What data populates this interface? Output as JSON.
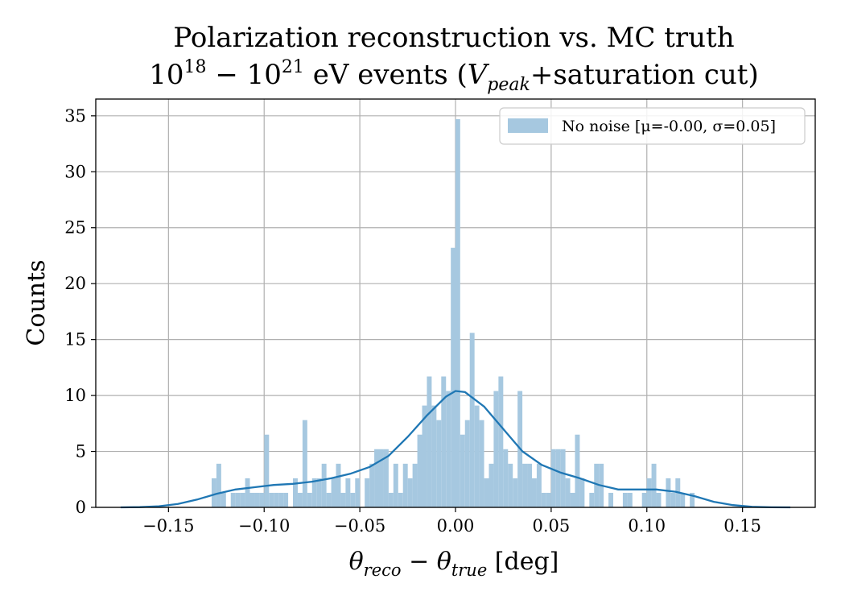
{
  "chart_data": {
    "type": "bar",
    "title": "Polarization reconstruction vs. MC truth",
    "subtitle": "10^18 – 10^21 eV events (V_peak+saturation cut)",
    "subtitle_parts": {
      "b1": "10",
      "e1": "18",
      "dash": " − ",
      "b2": "10",
      "e2": "21",
      "mid": " eV events (",
      "v": "V",
      "vsub": "peak",
      "tail": "+saturation cut)"
    },
    "xlabel": "θ_reco − θ_true [deg]",
    "xlabel_parts": {
      "t1": "θ",
      "s1": "reco",
      "minus": " − ",
      "t2": "θ",
      "s2": "true",
      "unit": " [deg]"
    },
    "ylabel": "Counts",
    "xlim": [
      -0.188,
      0.188
    ],
    "ylim": [
      0,
      36.5
    ],
    "xticks": [
      -0.15,
      -0.1,
      -0.05,
      0.0,
      0.05,
      0.1,
      0.15
    ],
    "xtick_labels": [
      "−0.15",
      "−0.10",
      "−0.05",
      "0.00",
      "0.05",
      "0.10",
      "0.15"
    ],
    "yticks": [
      0,
      5,
      10,
      15,
      20,
      25,
      30,
      35
    ],
    "ytick_labels": [
      "0",
      "5",
      "10",
      "15",
      "20",
      "25",
      "30",
      "35"
    ],
    "grid": true,
    "legend_position": "top-right",
    "bar_color": "#a6c8e0",
    "kde_color": "#1f77b4",
    "series": [
      {
        "name": "No noise [μ=-0.00, σ=0.05]",
        "type": "histogram",
        "bins": [
          {
            "x": -0.1262,
            "y": 2.6
          },
          {
            "x": -0.1237,
            "y": 3.9
          },
          {
            "x": -0.1212,
            "y": 1.3
          },
          {
            "x": -0.1162,
            "y": 1.3
          },
          {
            "x": -0.1137,
            "y": 1.3
          },
          {
            "x": -0.1112,
            "y": 1.3
          },
          {
            "x": -0.1087,
            "y": 2.6
          },
          {
            "x": -0.1062,
            "y": 1.3
          },
          {
            "x": -0.1037,
            "y": 1.3
          },
          {
            "x": -0.1012,
            "y": 1.3
          },
          {
            "x": -0.0987,
            "y": 6.5
          },
          {
            "x": -0.0962,
            "y": 1.3
          },
          {
            "x": -0.0937,
            "y": 1.3
          },
          {
            "x": -0.0912,
            "y": 1.3
          },
          {
            "x": -0.0887,
            "y": 1.3
          },
          {
            "x": -0.0862,
            "y": 0.0
          },
          {
            "x": -0.0837,
            "y": 2.6
          },
          {
            "x": -0.0812,
            "y": 1.3
          },
          {
            "x": -0.0787,
            "y": 7.8
          },
          {
            "x": -0.0762,
            "y": 1.3
          },
          {
            "x": -0.0737,
            "y": 2.6
          },
          {
            "x": -0.0712,
            "y": 2.6
          },
          {
            "x": -0.0687,
            "y": 3.9
          },
          {
            "x": -0.0662,
            "y": 1.3
          },
          {
            "x": -0.0637,
            "y": 2.6
          },
          {
            "x": -0.0612,
            "y": 3.9
          },
          {
            "x": -0.0587,
            "y": 1.3
          },
          {
            "x": -0.0562,
            "y": 2.6
          },
          {
            "x": -0.0537,
            "y": 1.3
          },
          {
            "x": -0.0512,
            "y": 2.6
          },
          {
            "x": -0.0487,
            "y": 0.0
          },
          {
            "x": -0.0462,
            "y": 2.6
          },
          {
            "x": -0.0437,
            "y": 3.9
          },
          {
            "x": -0.0412,
            "y": 5.2
          },
          {
            "x": -0.0387,
            "y": 5.2
          },
          {
            "x": -0.0362,
            "y": 5.2
          },
          {
            "x": -0.0337,
            "y": 1.3
          },
          {
            "x": -0.0312,
            "y": 3.9
          },
          {
            "x": -0.0287,
            "y": 1.3
          },
          {
            "x": -0.0262,
            "y": 3.9
          },
          {
            "x": -0.0237,
            "y": 2.6
          },
          {
            "x": -0.0212,
            "y": 3.9
          },
          {
            "x": -0.0187,
            "y": 6.5
          },
          {
            "x": -0.0162,
            "y": 9.1
          },
          {
            "x": -0.0137,
            "y": 11.7
          },
          {
            "x": -0.0112,
            "y": 9.1
          },
          {
            "x": -0.0087,
            "y": 7.8
          },
          {
            "x": -0.0062,
            "y": 11.7
          },
          {
            "x": -0.0037,
            "y": 10.4
          },
          {
            "x": -0.0012,
            "y": 23.2
          },
          {
            "x": 0.0012,
            "y": 34.7
          },
          {
            "x": 0.0037,
            "y": 6.5
          },
          {
            "x": 0.0062,
            "y": 7.8
          },
          {
            "x": 0.0087,
            "y": 15.6
          },
          {
            "x": 0.0112,
            "y": 9.1
          },
          {
            "x": 0.0137,
            "y": 7.8
          },
          {
            "x": 0.0162,
            "y": 2.6
          },
          {
            "x": 0.0187,
            "y": 3.9
          },
          {
            "x": 0.0212,
            "y": 10.4
          },
          {
            "x": 0.0237,
            "y": 11.7
          },
          {
            "x": 0.0262,
            "y": 5.2
          },
          {
            "x": 0.0287,
            "y": 3.9
          },
          {
            "x": 0.0312,
            "y": 2.6
          },
          {
            "x": 0.0337,
            "y": 10.4
          },
          {
            "x": 0.0362,
            "y": 3.9
          },
          {
            "x": 0.0387,
            "y": 3.9
          },
          {
            "x": 0.0412,
            "y": 2.6
          },
          {
            "x": 0.0437,
            "y": 3.9
          },
          {
            "x": 0.0462,
            "y": 1.3
          },
          {
            "x": 0.0487,
            "y": 1.3
          },
          {
            "x": 0.0512,
            "y": 5.2
          },
          {
            "x": 0.0537,
            "y": 5.2
          },
          {
            "x": 0.0562,
            "y": 5.2
          },
          {
            "x": 0.0587,
            "y": 2.6
          },
          {
            "x": 0.0612,
            "y": 1.3
          },
          {
            "x": 0.0637,
            "y": 6.5
          },
          {
            "x": 0.0662,
            "y": 2.6
          },
          {
            "x": 0.0712,
            "y": 1.3
          },
          {
            "x": 0.0737,
            "y": 3.9
          },
          {
            "x": 0.0762,
            "y": 3.9
          },
          {
            "x": 0.0812,
            "y": 1.3
          },
          {
            "x": 0.0887,
            "y": 1.3
          },
          {
            "x": 0.0912,
            "y": 1.3
          },
          {
            "x": 0.0987,
            "y": 1.3
          },
          {
            "x": 0.1012,
            "y": 2.6
          },
          {
            "x": 0.1037,
            "y": 3.9
          },
          {
            "x": 0.1062,
            "y": 1.3
          },
          {
            "x": 0.1112,
            "y": 2.6
          },
          {
            "x": 0.1137,
            "y": 1.3
          },
          {
            "x": 0.1162,
            "y": 2.6
          },
          {
            "x": 0.1187,
            "y": 1.3
          },
          {
            "x": 0.1237,
            "y": 1.3
          }
        ]
      },
      {
        "type": "kde",
        "points": [
          {
            "x": -0.175,
            "y": 0.0
          },
          {
            "x": -0.165,
            "y": 0.02
          },
          {
            "x": -0.155,
            "y": 0.1
          },
          {
            "x": -0.145,
            "y": 0.3
          },
          {
            "x": -0.135,
            "y": 0.7
          },
          {
            "x": -0.125,
            "y": 1.2
          },
          {
            "x": -0.115,
            "y": 1.6
          },
          {
            "x": -0.105,
            "y": 1.8
          },
          {
            "x": -0.095,
            "y": 2.0
          },
          {
            "x": -0.085,
            "y": 2.1
          },
          {
            "x": -0.075,
            "y": 2.3
          },
          {
            "x": -0.065,
            "y": 2.6
          },
          {
            "x": -0.055,
            "y": 3.0
          },
          {
            "x": -0.045,
            "y": 3.6
          },
          {
            "x": -0.035,
            "y": 4.6
          },
          {
            "x": -0.025,
            "y": 6.3
          },
          {
            "x": -0.015,
            "y": 8.2
          },
          {
            "x": -0.005,
            "y": 9.9
          },
          {
            "x": 0.0,
            "y": 10.4
          },
          {
            "x": 0.005,
            "y": 10.3
          },
          {
            "x": 0.015,
            "y": 9.0
          },
          {
            "x": 0.025,
            "y": 7.0
          },
          {
            "x": 0.035,
            "y": 5.0
          },
          {
            "x": 0.045,
            "y": 3.8
          },
          {
            "x": 0.055,
            "y": 3.1
          },
          {
            "x": 0.065,
            "y": 2.6
          },
          {
            "x": 0.075,
            "y": 2.0
          },
          {
            "x": 0.085,
            "y": 1.6
          },
          {
            "x": 0.095,
            "y": 1.6
          },
          {
            "x": 0.105,
            "y": 1.6
          },
          {
            "x": 0.115,
            "y": 1.4
          },
          {
            "x": 0.125,
            "y": 1.0
          },
          {
            "x": 0.135,
            "y": 0.5
          },
          {
            "x": 0.145,
            "y": 0.2
          },
          {
            "x": 0.155,
            "y": 0.05
          },
          {
            "x": 0.165,
            "y": 0.01
          },
          {
            "x": 0.175,
            "y": 0.0
          }
        ]
      }
    ]
  }
}
